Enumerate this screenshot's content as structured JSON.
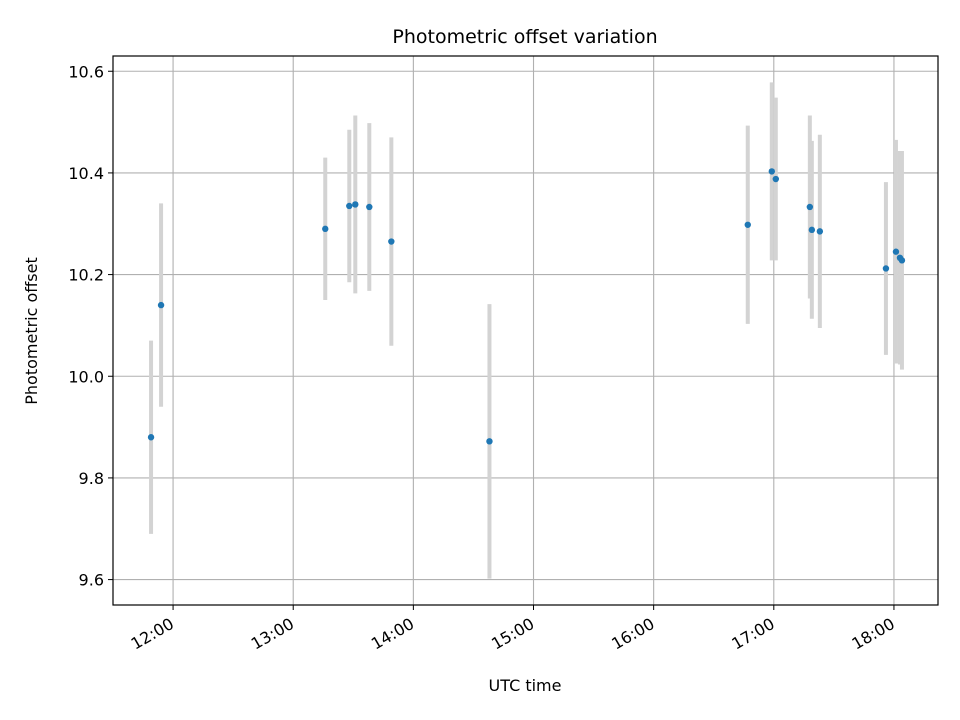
{
  "chart_data": {
    "type": "scatter",
    "title": "Photometric offset variation",
    "xlabel": "UTC time",
    "ylabel": "Photometric offset",
    "x_axis_type": "time",
    "xlim": [
      "11:30",
      "18:22"
    ],
    "ylim": [
      9.55,
      10.63
    ],
    "x_ticks": [
      "12:00",
      "13:00",
      "14:00",
      "15:00",
      "16:00",
      "17:00",
      "18:00"
    ],
    "y_ticks": [
      9.6,
      9.8,
      10.0,
      10.2,
      10.4,
      10.6
    ],
    "grid": true,
    "legend": "none",
    "point_color": "#1f77b4",
    "errorbar_color": "#d3d3d3",
    "series": [
      {
        "points": [
          {
            "x": "11:49",
            "y": 9.88,
            "err": 0.19
          },
          {
            "x": "11:54",
            "y": 10.14,
            "err": 0.2
          },
          {
            "x": "13:16",
            "y": 10.29,
            "err": 0.14
          },
          {
            "x": "13:28",
            "y": 10.335,
            "err": 0.15
          },
          {
            "x": "13:31",
            "y": 10.338,
            "err": 0.175
          },
          {
            "x": "13:38",
            "y": 10.333,
            "err": 0.165
          },
          {
            "x": "13:49",
            "y": 10.265,
            "err": 0.205
          },
          {
            "x": "14:38",
            "y": 9.872,
            "err": 0.27
          },
          {
            "x": "16:47",
            "y": 10.298,
            "err": 0.195
          },
          {
            "x": "16:59",
            "y": 10.403,
            "err": 0.175
          },
          {
            "x": "17:01",
            "y": 10.388,
            "err": 0.16
          },
          {
            "x": "17:18",
            "y": 10.333,
            "err": 0.18
          },
          {
            "x": "17:19",
            "y": 10.288,
            "err": 0.175
          },
          {
            "x": "17:23",
            "y": 10.285,
            "err": 0.19
          },
          {
            "x": "17:56",
            "y": 10.212,
            "err": 0.17
          },
          {
            "x": "18:01",
            "y": 10.245,
            "err": 0.22
          },
          {
            "x": "18:03",
            "y": 10.233,
            "err": 0.21
          },
          {
            "x": "18:04",
            "y": 10.228,
            "err": 0.215
          }
        ]
      }
    ]
  }
}
